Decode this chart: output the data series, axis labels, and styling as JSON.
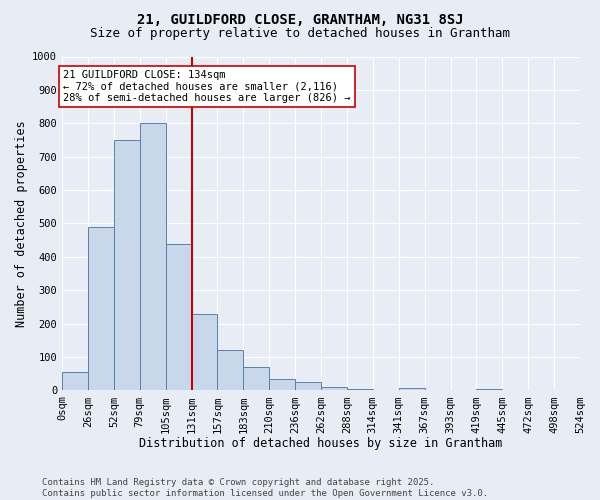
{
  "title": "21, GUILDFORD CLOSE, GRANTHAM, NG31 8SJ",
  "subtitle": "Size of property relative to detached houses in Grantham",
  "xlabel": "Distribution of detached houses by size in Grantham",
  "ylabel": "Number of detached properties",
  "bin_labels": [
    "0sqm",
    "26sqm",
    "52sqm",
    "79sqm",
    "105sqm",
    "131sqm",
    "157sqm",
    "183sqm",
    "210sqm",
    "236sqm",
    "262sqm",
    "288sqm",
    "314sqm",
    "341sqm",
    "367sqm",
    "393sqm",
    "419sqm",
    "445sqm",
    "472sqm",
    "498sqm",
    "524sqm"
  ],
  "bar_heights": [
    55,
    490,
    750,
    800,
    440,
    230,
    120,
    70,
    35,
    25,
    10,
    5,
    0,
    8,
    0,
    0,
    5,
    0,
    0,
    0
  ],
  "bar_color": "#c8d8ea",
  "bar_edge_color": "#5b7fa6",
  "bg_color": "#e8edf5",
  "grid_color": "#ffffff",
  "marker_bin": 5,
  "marker_color": "#cc0000",
  "annotation_text": "21 GUILDFORD CLOSE: 134sqm\n← 72% of detached houses are smaller (2,116)\n28% of semi-detached houses are larger (826) →",
  "annotation_box_color": "#ffffff",
  "annotation_box_edge": "#cc0000",
  "ylim": [
    0,
    1000
  ],
  "yticks": [
    0,
    100,
    200,
    300,
    400,
    500,
    600,
    700,
    800,
    900,
    1000
  ],
  "footnote": "Contains HM Land Registry data © Crown copyright and database right 2025.\nContains public sector information licensed under the Open Government Licence v3.0.",
  "title_fontsize": 10,
  "subtitle_fontsize": 9,
  "axis_fontsize": 8.5,
  "tick_fontsize": 7.5,
  "annotation_fontsize": 7.5,
  "footnote_fontsize": 6.5
}
